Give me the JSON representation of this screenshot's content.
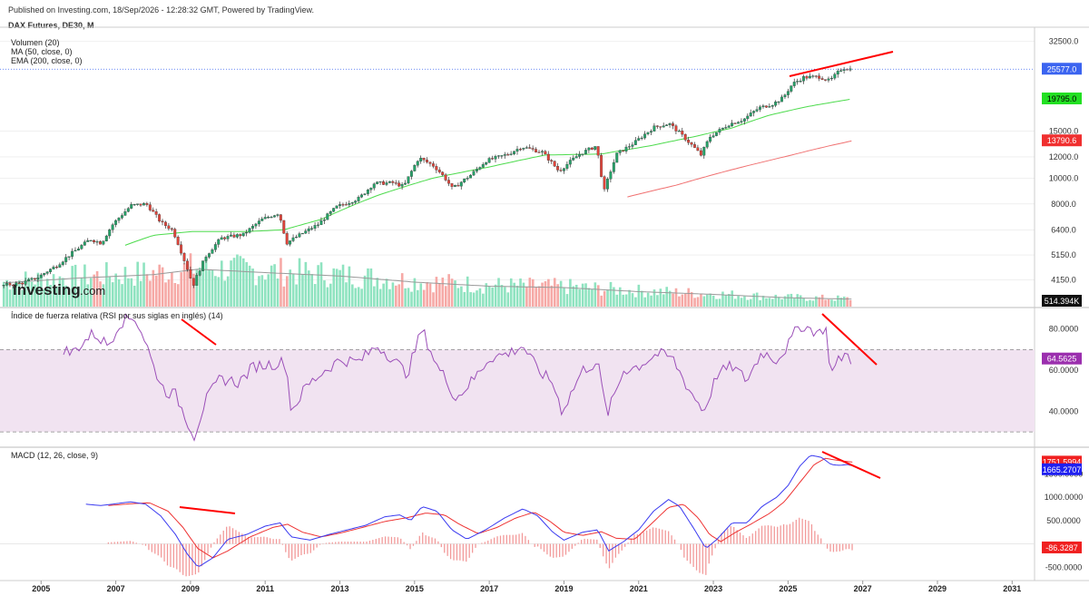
{
  "header": {
    "published": "Published on Investing.com, 18/Sep/2026 - 12:28:32 GMT, Powered by TradingView.",
    "symbol": "DAX Futures, DE30, M"
  },
  "logo": {
    "text": "Investing",
    "suffix": ".com"
  },
  "colors": {
    "up": "#26a269",
    "down": "#e0443a",
    "vol_up": "#8fe3c0",
    "vol_down": "#f6a9a6",
    "ma": "#4ddb4d",
    "ema": "#f07070",
    "vol_ma": "#999999",
    "rsi": "#9b4fb8",
    "rsi_band": "#f1e3f1",
    "macd": "#3a3af0",
    "signal": "#ee3333",
    "hist_pos": "#f29a9a",
    "hist_neg": "#f29a9a",
    "trend": "#ff0000",
    "grid": "#e6e6e6"
  },
  "chart_data": [
    {
      "type": "line",
      "name": "price",
      "legend": [
        "Volumen (20)",
        "MA (50, close, 0)",
        "EMA (200, close, 0)"
      ],
      "y_axis_ticks": [
        "32500.0",
        "15000.0",
        "12000.0",
        "10000.0",
        "8000.0",
        "6400.0",
        "5150.0",
        "4150.0"
      ],
      "y_scale": "log",
      "y_range": [
        3300,
        34500
      ],
      "x_range": [
        2003.9,
        2031.6
      ],
      "x_ticks": [
        "2005",
        "2007",
        "2009",
        "2011",
        "2013",
        "2015",
        "2017",
        "2019",
        "2021",
        "2023",
        "2025",
        "2027",
        "2029",
        "2031"
      ],
      "badges": {
        "price": "25577.0",
        "ma": "19795.0",
        "ema": "13790.6",
        "volume": "514.394K"
      },
      "anchors": [
        [
          2004.0,
          3950
        ],
        [
          2004.6,
          4050
        ],
        [
          2005.0,
          4250
        ],
        [
          2005.5,
          4700
        ],
        [
          2006.0,
          5350
        ],
        [
          2006.4,
          5900
        ],
        [
          2006.7,
          5700
        ],
        [
          2007.0,
          6700
        ],
        [
          2007.5,
          7900
        ],
        [
          2007.9,
          8000
        ],
        [
          2008.3,
          6800
        ],
        [
          2008.6,
          6400
        ],
        [
          2008.9,
          5000
        ],
        [
          2009.15,
          3950
        ],
        [
          2009.5,
          5100
        ],
        [
          2009.9,
          5950
        ],
        [
          2010.5,
          6150
        ],
        [
          2011.0,
          7000
        ],
        [
          2011.45,
          7400
        ],
        [
          2011.65,
          5700
        ],
        [
          2011.9,
          6000
        ],
        [
          2012.5,
          6700
        ],
        [
          2013.0,
          7800
        ],
        [
          2013.6,
          8400
        ],
        [
          2014.0,
          9550
        ],
        [
          2014.5,
          9600
        ],
        [
          2014.8,
          9300
        ],
        [
          2015.2,
          11900
        ],
        [
          2015.6,
          11100
        ],
        [
          2015.9,
          10000
        ],
        [
          2016.1,
          9100
        ],
        [
          2016.6,
          10300
        ],
        [
          2017.0,
          11600
        ],
        [
          2017.6,
          12300
        ],
        [
          2017.95,
          13100
        ],
        [
          2018.5,
          12500
        ],
        [
          2018.95,
          10600
        ],
        [
          2019.5,
          12300
        ],
        [
          2019.95,
          13200
        ],
        [
          2020.15,
          8800
        ],
        [
          2020.5,
          12300
        ],
        [
          2020.95,
          13500
        ],
        [
          2021.5,
          15500
        ],
        [
          2021.9,
          16000
        ],
        [
          2022.3,
          14200
        ],
        [
          2022.75,
          12200
        ],
        [
          2023.0,
          14300
        ],
        [
          2023.5,
          15900
        ],
        [
          2023.9,
          16600
        ],
        [
          2024.3,
          18300
        ],
        [
          2024.7,
          19000
        ],
        [
          2024.95,
          20000
        ],
        [
          2025.2,
          22500
        ],
        [
          2025.5,
          23800
        ],
        [
          2025.9,
          24000
        ],
        [
          2026.2,
          23100
        ],
        [
          2026.55,
          25900
        ],
        [
          2026.72,
          25577
        ]
      ],
      "ma_anchors": [
        [
          2007.25,
          5600
        ],
        [
          2008.0,
          6100
        ],
        [
          2009.0,
          6300
        ],
        [
          2010.5,
          6300
        ],
        [
          2011.5,
          6400
        ],
        [
          2012.5,
          7000
        ],
        [
          2014.0,
          8600
        ],
        [
          2015.5,
          10000
        ],
        [
          2017.0,
          11000
        ],
        [
          2018.5,
          12200
        ],
        [
          2020.0,
          12300
        ],
        [
          2021.3,
          13200
        ],
        [
          2022.5,
          14300
        ],
        [
          2023.5,
          15400
        ],
        [
          2024.5,
          17200
        ],
        [
          2025.5,
          18500
        ],
        [
          2026.72,
          19795
        ]
      ],
      "ema_anchors": [
        [
          2020.7,
          8500
        ],
        [
          2022.0,
          9400
        ],
        [
          2023.0,
          10300
        ],
        [
          2024.0,
          11200
        ],
        [
          2025.0,
          12100
        ],
        [
          2026.0,
          13100
        ],
        [
          2026.72,
          13790
        ]
      ],
      "volume_ma_anchors": [
        [
          2004.0,
          0.35
        ],
        [
          2006.0,
          0.42
        ],
        [
          2008.0,
          0.47
        ],
        [
          2009.2,
          0.55
        ],
        [
          2011.0,
          0.5
        ],
        [
          2013.0,
          0.45
        ],
        [
          2015.0,
          0.36
        ],
        [
          2017.0,
          0.3
        ],
        [
          2019.0,
          0.28
        ],
        [
          2021.0,
          0.22
        ],
        [
          2023.0,
          0.18
        ],
        [
          2025.0,
          0.13
        ],
        [
          2026.72,
          0.11
        ]
      ]
    },
    {
      "type": "line",
      "name": "rsi",
      "legend": "Índice de fuerza relativa (RSI por sus siglas en inglés) (14)",
      "y_axis_ticks": [
        "80.0000",
        "60.0000",
        "40.0000"
      ],
      "y_range": [
        23,
        90
      ],
      "band": [
        30,
        70
      ],
      "badge": "64.5625",
      "anchors": [
        [
          2004.0,
          70
        ],
        [
          2004.7,
          66
        ],
        [
          2005.3,
          74
        ],
        [
          2005.8,
          68
        ],
        [
          2006.4,
          78
        ],
        [
          2006.8,
          72
        ],
        [
          2007.1,
          83
        ],
        [
          2007.5,
          86
        ],
        [
          2007.8,
          74
        ],
        [
          2008.0,
          62
        ],
        [
          2008.3,
          50
        ],
        [
          2008.6,
          48
        ],
        [
          2008.9,
          36
        ],
        [
          2009.1,
          28
        ],
        [
          2009.4,
          45
        ],
        [
          2009.8,
          56
        ],
        [
          2010.3,
          54
        ],
        [
          2010.7,
          62
        ],
        [
          2011.2,
          63
        ],
        [
          2011.55,
          64
        ],
        [
          2011.7,
          40
        ],
        [
          2012.1,
          52
        ],
        [
          2012.6,
          60
        ],
        [
          2013.0,
          65
        ],
        [
          2013.5,
          64
        ],
        [
          2014.0,
          72
        ],
        [
          2014.4,
          66
        ],
        [
          2014.8,
          58
        ],
        [
          2015.2,
          80
        ],
        [
          2015.6,
          62
        ],
        [
          2015.9,
          54
        ],
        [
          2016.1,
          46
        ],
        [
          2016.6,
          56
        ],
        [
          2017.0,
          66
        ],
        [
          2017.5,
          68
        ],
        [
          2017.9,
          72
        ],
        [
          2018.3,
          60
        ],
        [
          2018.7,
          54
        ],
        [
          2018.95,
          40
        ],
        [
          2019.5,
          60
        ],
        [
          2019.9,
          64
        ],
        [
          2020.15,
          38
        ],
        [
          2020.6,
          60
        ],
        [
          2021.0,
          62
        ],
        [
          2021.5,
          68
        ],
        [
          2021.9,
          66
        ],
        [
          2022.3,
          52
        ],
        [
          2022.75,
          40
        ],
        [
          2023.1,
          58
        ],
        [
          2023.5,
          62
        ],
        [
          2023.9,
          55
        ],
        [
          2024.3,
          69
        ],
        [
          2024.7,
          65
        ],
        [
          2025.0,
          72
        ],
        [
          2025.3,
          82
        ],
        [
          2025.6,
          80
        ],
        [
          2025.85,
          78
        ],
        [
          2026.0,
          82
        ],
        [
          2026.15,
          58
        ],
        [
          2026.4,
          66
        ],
        [
          2026.55,
          68
        ],
        [
          2026.72,
          64.56
        ]
      ]
    },
    {
      "type": "line",
      "name": "macd",
      "legend": "MACD (12, 26, close, 9)",
      "y_axis_ticks": [
        "1500.0000",
        "1000.0000",
        "500.0000",
        "-500.0000"
      ],
      "y_range": [
        -650,
        2050
      ],
      "badges": {
        "signal": "1751.5994",
        "macd": "1665.2707",
        "hist": "-86.3287"
      },
      "macd_anchors": [
        [
          2006.2,
          850
        ],
        [
          2006.6,
          820
        ],
        [
          2007.0,
          860
        ],
        [
          2007.4,
          900
        ],
        [
          2007.8,
          850
        ],
        [
          2008.2,
          600
        ],
        [
          2008.6,
          200
        ],
        [
          2008.9,
          -200
        ],
        [
          2009.2,
          -500
        ],
        [
          2009.6,
          -300
        ],
        [
          2010.0,
          100
        ],
        [
          2010.5,
          200
        ],
        [
          2011.0,
          380
        ],
        [
          2011.4,
          450
        ],
        [
          2011.7,
          150
        ],
        [
          2012.2,
          80
        ],
        [
          2012.7,
          200
        ],
        [
          2013.2,
          300
        ],
        [
          2013.7,
          400
        ],
        [
          2014.2,
          580
        ],
        [
          2014.6,
          620
        ],
        [
          2014.9,
          500
        ],
        [
          2015.2,
          800
        ],
        [
          2015.6,
          700
        ],
        [
          2016.0,
          300
        ],
        [
          2016.4,
          100
        ],
        [
          2016.9,
          300
        ],
        [
          2017.4,
          550
        ],
        [
          2017.9,
          750
        ],
        [
          2018.3,
          600
        ],
        [
          2018.7,
          250
        ],
        [
          2019.0,
          80
        ],
        [
          2019.5,
          250
        ],
        [
          2019.9,
          300
        ],
        [
          2020.2,
          -150
        ],
        [
          2020.6,
          50
        ],
        [
          2021.0,
          300
        ],
        [
          2021.4,
          700
        ],
        [
          2021.8,
          950
        ],
        [
          2022.1,
          800
        ],
        [
          2022.5,
          300
        ],
        [
          2022.8,
          -100
        ],
        [
          2023.1,
          100
        ],
        [
          2023.5,
          450
        ],
        [
          2023.9,
          450
        ],
        [
          2024.3,
          800
        ],
        [
          2024.7,
          1000
        ],
        [
          2025.0,
          1250
        ],
        [
          2025.3,
          1650
        ],
        [
          2025.6,
          1900
        ],
        [
          2025.9,
          1850
        ],
        [
          2026.15,
          1700
        ],
        [
          2026.4,
          1680
        ],
        [
          2026.6,
          1700
        ],
        [
          2026.72,
          1665
        ]
      ],
      "signal_anchors": [
        [
          2006.8,
          820
        ],
        [
          2007.4,
          860
        ],
        [
          2007.9,
          880
        ],
        [
          2008.4,
          700
        ],
        [
          2008.8,
          350
        ],
        [
          2009.2,
          -100
        ],
        [
          2009.6,
          -300
        ],
        [
          2010.0,
          -150
        ],
        [
          2010.6,
          150
        ],
        [
          2011.2,
          350
        ],
        [
          2011.6,
          420
        ],
        [
          2012.0,
          250
        ],
        [
          2012.5,
          150
        ],
        [
          2013.0,
          230
        ],
        [
          2013.6,
          350
        ],
        [
          2014.2,
          480
        ],
        [
          2014.8,
          560
        ],
        [
          2015.3,
          660
        ],
        [
          2015.8,
          620
        ],
        [
          2016.2,
          420
        ],
        [
          2016.7,
          220
        ],
        [
          2017.2,
          350
        ],
        [
          2017.7,
          550
        ],
        [
          2018.2,
          680
        ],
        [
          2018.6,
          500
        ],
        [
          2019.0,
          250
        ],
        [
          2019.5,
          180
        ],
        [
          2020.0,
          260
        ],
        [
          2020.4,
          120
        ],
        [
          2020.9,
          100
        ],
        [
          2021.3,
          400
        ],
        [
          2021.8,
          780
        ],
        [
          2022.2,
          850
        ],
        [
          2022.6,
          550
        ],
        [
          2022.9,
          200
        ],
        [
          2023.2,
          50
        ],
        [
          2023.6,
          250
        ],
        [
          2024.0,
          420
        ],
        [
          2024.5,
          650
        ],
        [
          2024.9,
          900
        ],
        [
          2025.3,
          1300
        ],
        [
          2025.7,
          1700
        ],
        [
          2026.0,
          1830
        ],
        [
          2026.4,
          1780
        ],
        [
          2026.72,
          1751
        ]
      ]
    }
  ]
}
